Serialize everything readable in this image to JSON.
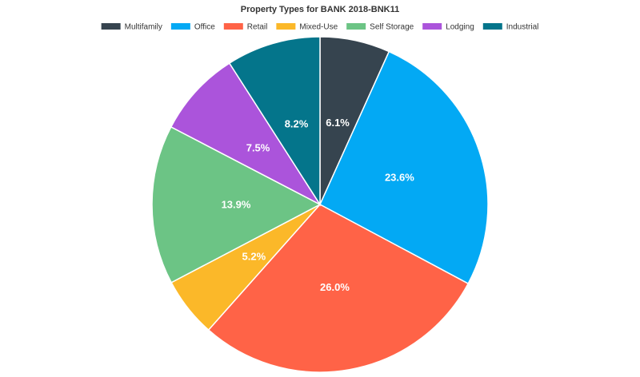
{
  "chart_data": {
    "type": "pie",
    "title": "Property Types for BANK 2018-BNK11",
    "legend_position": "top",
    "series": [
      {
        "name": "Multifamily",
        "value": 6.1,
        "label": "6.1%",
        "color": "#36444f"
      },
      {
        "name": "Office",
        "value": 23.6,
        "label": "23.6%",
        "color": "#03a9f4"
      },
      {
        "name": "Retail",
        "value": 26.0,
        "label": "26.0%",
        "color": "#ff6347"
      },
      {
        "name": "Mixed-Use",
        "value": 5.2,
        "label": "5.2%",
        "color": "#fbb829"
      },
      {
        "name": "Self Storage",
        "value": 13.9,
        "label": "13.9%",
        "color": "#6cc485"
      },
      {
        "name": "Lodging",
        "value": 7.5,
        "label": "7.5%",
        "color": "#ab54db"
      },
      {
        "name": "Industrial",
        "value": 8.2,
        "label": "8.2%",
        "color": "#04758b"
      }
    ]
  }
}
